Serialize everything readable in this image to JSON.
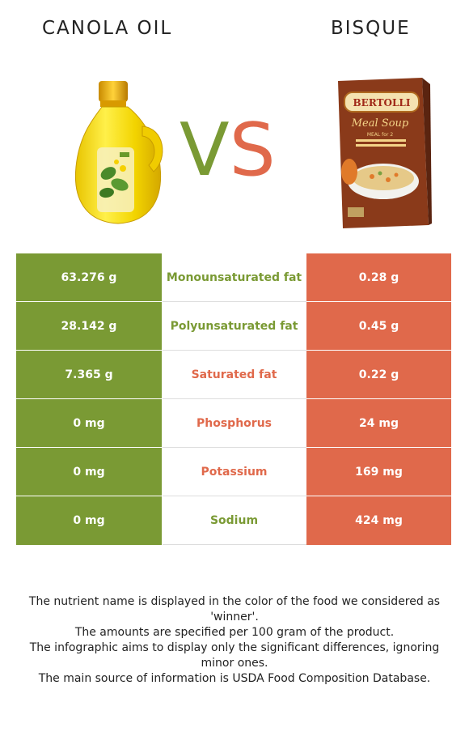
{
  "left_food": {
    "name": "CANOLA OIL",
    "color": "#7a9a34"
  },
  "right_food": {
    "name": "BISQUE",
    "color": "#e0694b"
  },
  "vs": {
    "v": "V",
    "s": "S"
  },
  "bisque_box": {
    "brand": "BERTOLLI",
    "line1": "Meal Soup",
    "line2": "MEAL for 2"
  },
  "rows": [
    {
      "left": "63.276 g",
      "nutrient": "Monounsaturated fat",
      "right": "0.28 g",
      "winner": "left"
    },
    {
      "left": "28.142 g",
      "nutrient": "Polyunsaturated fat",
      "right": "0.45 g",
      "winner": "left"
    },
    {
      "left": "7.365 g",
      "nutrient": "Saturated fat",
      "right": "0.22 g",
      "winner": "right"
    },
    {
      "left": "0 mg",
      "nutrient": "Phosphorus",
      "right": "24 mg",
      "winner": "right"
    },
    {
      "left": "0 mg",
      "nutrient": "Potassium",
      "right": "169 mg",
      "winner": "right"
    },
    {
      "left": "0 mg",
      "nutrient": "Sodium",
      "right": "424 mg",
      "winner": "left"
    }
  ],
  "notes": [
    "The nutrient name is displayed in the color of the food we considered as 'winner'.",
    "The amounts are specified per 100 gram of the product.",
    "The infographic aims to display only the significant differences, ignoring minor ones.",
    "The main source of information is USDA Food Composition Database."
  ]
}
